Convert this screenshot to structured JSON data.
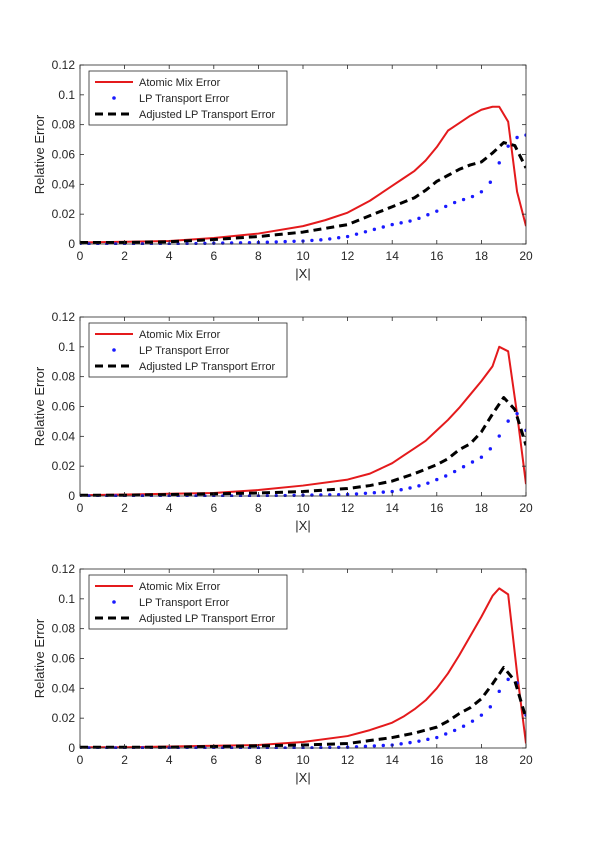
{
  "chart_data": [
    {
      "type": "line",
      "xlabel": "|X|",
      "ylabel": "Relative Error",
      "xlim": [
        0,
        20
      ],
      "ylim": [
        0,
        0.12
      ],
      "xticks": [
        "0",
        "2",
        "4",
        "6",
        "8",
        "10",
        "12",
        "14",
        "16",
        "18",
        "20"
      ],
      "yticks": [
        "0",
        "0.02",
        "0.04",
        "0.06",
        "0.08",
        "0.1",
        "0.12"
      ],
      "legend_position": "top-left",
      "series": [
        {
          "name": "Atomic Mix Error",
          "style": "solid",
          "color": "#e41a1c",
          "x": [
            0,
            2,
            4,
            6,
            8,
            10,
            11,
            12,
            13,
            14,
            14.5,
            15,
            15.5,
            16,
            16.5,
            17,
            17.5,
            18,
            18.5,
            18.8,
            19.2,
            19.6,
            20
          ],
          "y": [
            0.001,
            0.0015,
            0.002,
            0.004,
            0.007,
            0.012,
            0.016,
            0.021,
            0.029,
            0.039,
            0.044,
            0.049,
            0.056,
            0.065,
            0.076,
            0.081,
            0.086,
            0.09,
            0.092,
            0.092,
            0.082,
            0.035,
            0.012
          ]
        },
        {
          "name": "LP Transport Error",
          "style": "dotted",
          "color": "#1a1aff",
          "x": [
            0,
            2,
            4,
            6,
            8,
            10,
            11,
            12,
            13,
            14,
            15,
            15.5,
            16,
            16.5,
            17,
            17.5,
            18,
            18.5,
            19,
            19.5,
            20
          ],
          "y": [
            0,
            0,
            0,
            0.0005,
            0.001,
            0.002,
            0.003,
            0.005,
            0.009,
            0.013,
            0.016,
            0.019,
            0.022,
            0.026,
            0.029,
            0.031,
            0.035,
            0.043,
            0.062,
            0.071,
            0.073
          ]
        },
        {
          "name": "Adjusted LP Transport Error",
          "style": "dashed",
          "color": "#000000",
          "x": [
            0,
            2,
            4,
            6,
            8,
            10,
            12,
            13,
            14,
            15,
            15.5,
            16,
            16.5,
            17,
            17.5,
            18,
            18.5,
            19,
            19.5,
            20
          ],
          "y": [
            0.001,
            0.001,
            0.0015,
            0.003,
            0.005,
            0.008,
            0.013,
            0.019,
            0.025,
            0.031,
            0.036,
            0.042,
            0.046,
            0.05,
            0.053,
            0.055,
            0.061,
            0.068,
            0.066,
            0.051
          ]
        }
      ]
    },
    {
      "type": "line",
      "xlabel": "|X|",
      "ylabel": "Relative Error",
      "xlim": [
        0,
        20
      ],
      "ylim": [
        0,
        0.12
      ],
      "xticks": [
        "0",
        "2",
        "4",
        "6",
        "8",
        "10",
        "12",
        "14",
        "16",
        "18",
        "20"
      ],
      "yticks": [
        "0",
        "0.02",
        "0.04",
        "0.06",
        "0.08",
        "0.1",
        "0.12"
      ],
      "legend_position": "top-left",
      "series": [
        {
          "name": "Atomic Mix Error",
          "style": "solid",
          "color": "#e41a1c",
          "x": [
            0,
            2,
            4,
            6,
            8,
            10,
            12,
            13,
            14,
            14.5,
            15,
            15.5,
            16,
            16.5,
            17,
            17.5,
            18,
            18.5,
            18.8,
            19.2,
            19.6,
            20
          ],
          "y": [
            0.0005,
            0.001,
            0.0015,
            0.002,
            0.004,
            0.007,
            0.011,
            0.015,
            0.022,
            0.027,
            0.032,
            0.037,
            0.044,
            0.051,
            0.059,
            0.068,
            0.077,
            0.087,
            0.1,
            0.097,
            0.055,
            0.008
          ]
        },
        {
          "name": "LP Transport Error",
          "style": "dotted",
          "color": "#1a1aff",
          "x": [
            0,
            2,
            4,
            6,
            8,
            10,
            12,
            13,
            14,
            15,
            15.5,
            16,
            16.5,
            17,
            17.5,
            18,
            18.5,
            19,
            19.5,
            20
          ],
          "y": [
            0,
            0,
            0,
            0,
            0,
            0.0005,
            0.001,
            0.002,
            0.003,
            0.006,
            0.008,
            0.011,
            0.014,
            0.018,
            0.022,
            0.026,
            0.033,
            0.045,
            0.058,
            0.044
          ]
        },
        {
          "name": "Adjusted LP Transport Error",
          "style": "dashed",
          "color": "#000000",
          "x": [
            0,
            2,
            4,
            6,
            8,
            10,
            12,
            13,
            14,
            15,
            16,
            16.5,
            17,
            17.5,
            18,
            18.5,
            19,
            19.5,
            20
          ],
          "y": [
            0.0005,
            0.0005,
            0.001,
            0.0015,
            0.002,
            0.003,
            0.005,
            0.007,
            0.01,
            0.015,
            0.021,
            0.025,
            0.031,
            0.035,
            0.043,
            0.055,
            0.066,
            0.058,
            0.034
          ]
        }
      ]
    },
    {
      "type": "line",
      "xlabel": "|X|",
      "ylabel": "Relative Error",
      "xlim": [
        0,
        20
      ],
      "ylim": [
        0,
        0.12
      ],
      "xticks": [
        "0",
        "2",
        "4",
        "6",
        "8",
        "10",
        "12",
        "14",
        "16",
        "18",
        "20"
      ],
      "yticks": [
        "0",
        "0.02",
        "0.04",
        "0.06",
        "0.08",
        "0.1",
        "0.12"
      ],
      "legend_position": "top-left",
      "series": [
        {
          "name": "Atomic Mix Error",
          "style": "solid",
          "color": "#e41a1c",
          "x": [
            0,
            2,
            4,
            6,
            8,
            10,
            12,
            13,
            14,
            14.5,
            15,
            15.5,
            16,
            16.5,
            17,
            17.5,
            18,
            18.5,
            18.8,
            19.2,
            19.6,
            20
          ],
          "y": [
            0.0005,
            0.0005,
            0.001,
            0.0015,
            0.002,
            0.004,
            0.008,
            0.012,
            0.017,
            0.021,
            0.026,
            0.032,
            0.04,
            0.05,
            0.062,
            0.075,
            0.088,
            0.102,
            0.107,
            0.103,
            0.05,
            0.003
          ]
        },
        {
          "name": "LP Transport Error",
          "style": "dotted",
          "color": "#1a1aff",
          "x": [
            0,
            2,
            4,
            6,
            8,
            10,
            12,
            14,
            15,
            16,
            16.5,
            17,
            17.5,
            18,
            18.5,
            19,
            19.5,
            20
          ],
          "y": [
            0,
            0,
            0,
            0,
            0,
            0,
            0.0005,
            0.002,
            0.004,
            0.007,
            0.01,
            0.013,
            0.017,
            0.022,
            0.029,
            0.044,
            0.049,
            0.022
          ]
        },
        {
          "name": "Adjusted LP Transport Error",
          "style": "dashed",
          "color": "#000000",
          "x": [
            0,
            2,
            4,
            6,
            8,
            10,
            12,
            13,
            14,
            15,
            16,
            16.5,
            17,
            17.5,
            18,
            18.5,
            19,
            19.5,
            20
          ],
          "y": [
            0.0005,
            0.0005,
            0.0005,
            0.001,
            0.0015,
            0.002,
            0.003,
            0.005,
            0.007,
            0.01,
            0.014,
            0.018,
            0.023,
            0.027,
            0.033,
            0.043,
            0.054,
            0.045,
            0.02
          ]
        }
      ]
    }
  ]
}
